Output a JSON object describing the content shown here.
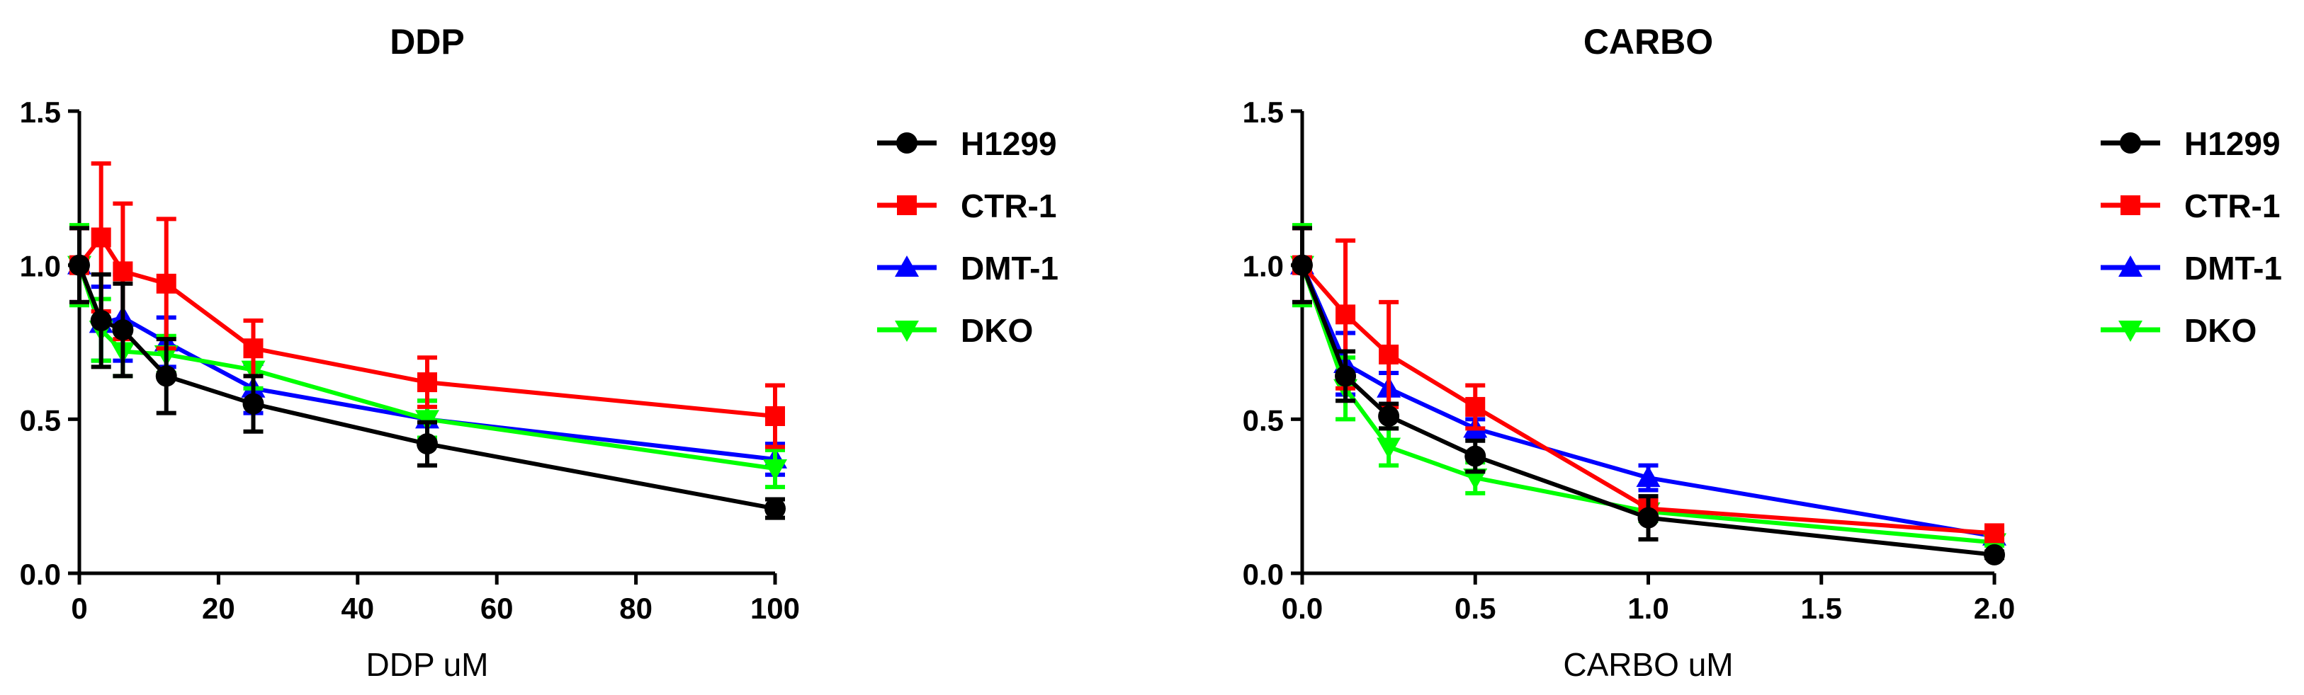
{
  "chart_data": [
    {
      "type": "line",
      "title": "DDP",
      "xlabel": "DDP uM",
      "ylabel": "",
      "xlim": [
        0,
        100
      ],
      "ylim": [
        0,
        1.5
      ],
      "xticks": [
        0,
        20,
        40,
        60,
        80,
        100
      ],
      "yticks": [
        0.0,
        0.5,
        1.0,
        1.5
      ],
      "xtick_labels": [
        "0",
        "20",
        "40",
        "60",
        "80",
        "100"
      ],
      "ytick_labels": [
        "0.0",
        "0.5",
        "1.0",
        "1.5"
      ],
      "grid": false,
      "legend": "right",
      "x": [
        0,
        3.125,
        6.25,
        12.5,
        25,
        50,
        100
      ],
      "series": [
        {
          "name": "H1299",
          "color": "#000000",
          "marker": "circle",
          "values": [
            1.0,
            0.82,
            0.79,
            0.64,
            0.55,
            0.42,
            0.21
          ],
          "errors": [
            0.12,
            0.15,
            0.15,
            0.12,
            0.09,
            0.07,
            0.03
          ]
        },
        {
          "name": "CTR-1",
          "color": "#ff0000",
          "marker": "square",
          "values": [
            1.0,
            1.09,
            0.98,
            0.94,
            0.73,
            0.62,
            0.51
          ],
          "errors": [
            0.12,
            0.24,
            0.22,
            0.21,
            0.09,
            0.08,
            0.1
          ]
        },
        {
          "name": "DMT-1",
          "color": "#0000ff",
          "marker": "triangle-up",
          "values": [
            1.0,
            0.81,
            0.83,
            0.75,
            0.6,
            0.5,
            0.37
          ],
          "errors": [
            0.12,
            0.12,
            0.14,
            0.08,
            0.08,
            0.06,
            0.05
          ]
        },
        {
          "name": "DKO",
          "color": "#00ff00",
          "marker": "triangle-down",
          "values": [
            1.0,
            0.79,
            0.72,
            0.71,
            0.66,
            0.5,
            0.34
          ],
          "errors": [
            0.13,
            0.1,
            0.08,
            0.06,
            0.06,
            0.06,
            0.06
          ]
        }
      ]
    },
    {
      "type": "line",
      "title": "CARBO",
      "xlabel": "CARBO uM",
      "ylabel": "",
      "xlim": [
        0,
        2
      ],
      "ylim": [
        0,
        1.5
      ],
      "xticks": [
        0.0,
        0.5,
        1.0,
        1.5,
        2.0
      ],
      "yticks": [
        0.0,
        0.5,
        1.0,
        1.5
      ],
      "xtick_labels": [
        "0.0",
        "0.5",
        "1.0",
        "1.5",
        "2.0"
      ],
      "ytick_labels": [
        "0.0",
        "0.5",
        "1.0",
        "1.5"
      ],
      "grid": false,
      "legend": "right",
      "x": [
        0,
        0.125,
        0.25,
        0.5,
        1.0,
        2.0
      ],
      "series": [
        {
          "name": "H1299",
          "color": "#000000",
          "marker": "circle",
          "values": [
            1.0,
            0.64,
            0.51,
            0.38,
            0.18,
            0.06
          ],
          "errors": [
            0.12,
            0.08,
            0.04,
            0.05,
            0.07,
            0.01
          ]
        },
        {
          "name": "CTR-1",
          "color": "#ff0000",
          "marker": "square",
          "values": [
            1.0,
            0.84,
            0.71,
            0.54,
            0.21,
            0.13
          ],
          "errors": [
            0.12,
            0.24,
            0.17,
            0.07,
            0.03,
            0.02
          ]
        },
        {
          "name": "DMT-1",
          "color": "#0000ff",
          "marker": "triangle-up",
          "values": [
            1.0,
            0.68,
            0.6,
            0.47,
            0.31,
            0.12
          ],
          "errors": [
            0.12,
            0.1,
            0.05,
            0.03,
            0.04,
            0.01
          ]
        },
        {
          "name": "DKO",
          "color": "#00ff00",
          "marker": "triangle-down",
          "values": [
            1.0,
            0.6,
            0.41,
            0.31,
            0.2,
            0.1
          ],
          "errors": [
            0.13,
            0.1,
            0.06,
            0.05,
            0.03,
            0.01
          ]
        }
      ]
    }
  ]
}
